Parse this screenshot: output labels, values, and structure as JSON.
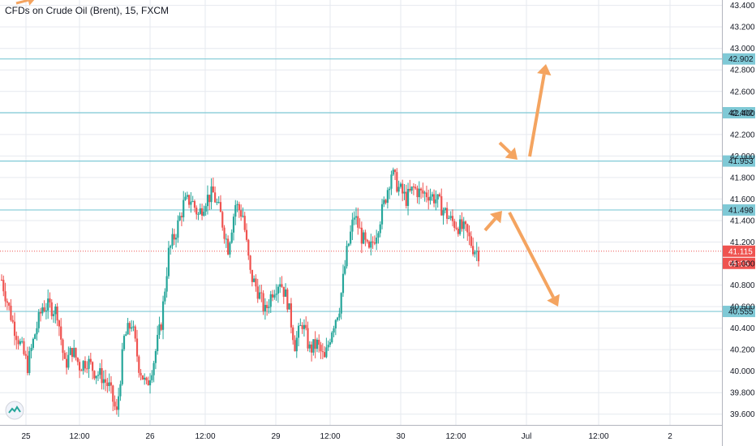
{
  "header": {
    "title": "CFDs on Crude Oil (Brent), 15, FXCM"
  },
  "colors": {
    "bull": "#26a69a",
    "bear": "#ef5350",
    "level": "#7fc9d6",
    "price": "#ef5350",
    "arrow": "#f4a460",
    "grid": "#e6e9ef",
    "axis": "#131722"
  },
  "chart_data": {
    "type": "candlestick",
    "symbol": "CFDs on Crude Oil (Brent)",
    "interval": "15",
    "source": "FXCM",
    "ylim": [
      39.5,
      43.45
    ],
    "y_ticks": [
      "43.400",
      "43.200",
      "43.000",
      "42.800",
      "42.600",
      "42.400",
      "42.200",
      "42.000",
      "41.800",
      "41.600",
      "41.400",
      "41.200",
      "41.000",
      "40.800",
      "40.600",
      "40.400",
      "40.200",
      "40.000",
      "39.800",
      "39.600"
    ],
    "x_ticks": [
      "25",
      "12:00",
      "26",
      "12:00",
      "29",
      "12:00",
      "30",
      "12:00",
      "Jul",
      "12:00",
      "2"
    ],
    "grid": true,
    "levels": [
      42.902,
      42.402,
      41.953,
      41.498,
      40.555
    ],
    "level_labels": [
      "42.902",
      "42.402",
      "41.953",
      "41.498",
      "40.555"
    ],
    "current_price": "41.115",
    "countdown": "05:15",
    "anchors": [
      [
        0,
        40.85
      ],
      [
        6,
        40.45
      ],
      [
        10,
        40.25
      ],
      [
        14,
        40.05
      ],
      [
        18,
        40.35
      ],
      [
        22,
        40.6
      ],
      [
        26,
        40.6
      ],
      [
        30,
        40.55
      ],
      [
        34,
        40.05
      ],
      [
        38,
        40.2
      ],
      [
        42,
        40.05
      ],
      [
        46,
        40.1
      ],
      [
        50,
        40.0
      ],
      [
        54,
        39.95
      ],
      [
        58,
        39.85
      ],
      [
        62,
        39.6
      ],
      [
        66,
        40.3
      ],
      [
        70,
        40.45
      ],
      [
        74,
        40.05
      ],
      [
        78,
        39.85
      ],
      [
        82,
        40.1
      ],
      [
        86,
        40.45
      ],
      [
        90,
        41.1
      ],
      [
        94,
        41.3
      ],
      [
        98,
        41.55
      ],
      [
        102,
        41.6
      ],
      [
        106,
        41.45
      ],
      [
        110,
        41.6
      ],
      [
        114,
        41.65
      ],
      [
        118,
        41.45
      ],
      [
        122,
        41.15
      ],
      [
        126,
        41.55
      ],
      [
        130,
        41.45
      ],
      [
        134,
        40.9
      ],
      [
        138,
        40.75
      ],
      [
        142,
        40.55
      ],
      [
        146,
        40.75
      ],
      [
        150,
        40.85
      ],
      [
        154,
        40.65
      ],
      [
        158,
        40.25
      ],
      [
        162,
        40.45
      ],
      [
        166,
        40.2
      ],
      [
        170,
        40.25
      ],
      [
        174,
        40.1
      ],
      [
        178,
        40.4
      ],
      [
        182,
        40.6
      ],
      [
        186,
        41.1
      ],
      [
        190,
        41.45
      ],
      [
        194,
        41.25
      ],
      [
        198,
        41.1
      ],
      [
        202,
        41.3
      ],
      [
        206,
        41.55
      ],
      [
        210,
        41.85
      ],
      [
        214,
        41.7
      ],
      [
        218,
        41.6
      ],
      [
        222,
        41.7
      ],
      [
        226,
        41.65
      ],
      [
        230,
        41.65
      ],
      [
        234,
        41.6
      ],
      [
        238,
        41.5
      ],
      [
        242,
        41.4
      ],
      [
        246,
        41.35
      ],
      [
        250,
        41.3
      ],
      [
        254,
        41.15
      ],
      [
        257,
        41.1
      ]
    ],
    "annotations": [
      "arrow-to-41.953",
      "arrow-up-to-42.902",
      "arrow-to-41.498",
      "arrow-down-to-40.555"
    ]
  }
}
